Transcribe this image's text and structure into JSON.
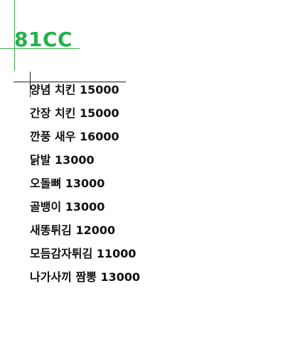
{
  "heading": {
    "text": "81CC",
    "color": "#22b14c"
  },
  "menu": {
    "items": [
      "양념 치킨 15000",
      "간장 치킨 15000",
      "깐풍 새우 16000",
      "닭발 13000",
      "오돌뼈 13000",
      "골뱅이 13000",
      "새똥튀김 12000",
      "모듬감자튀김 11000",
      "나가사끼 짬뽕 13000"
    ]
  }
}
